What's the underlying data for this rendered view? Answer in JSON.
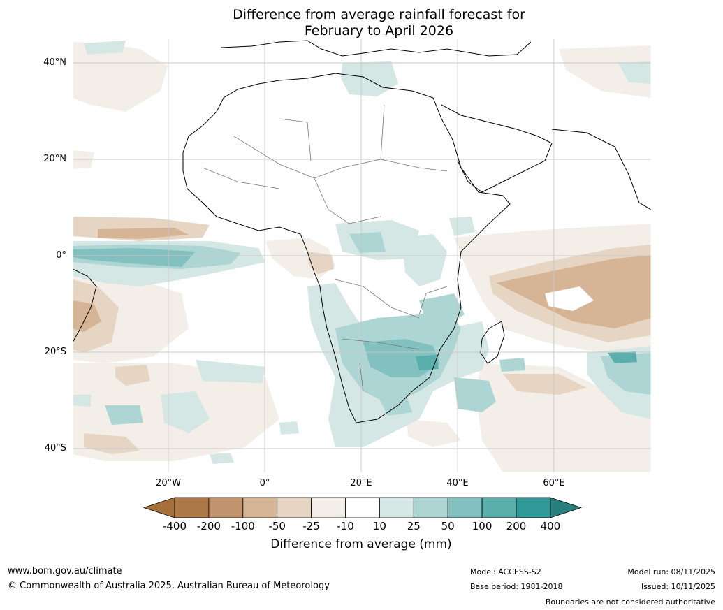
{
  "title": {
    "line1": "Difference from average rainfall forecast for",
    "line2": "February to April 2026"
  },
  "axes": {
    "lat_labels": [
      "40°N",
      "20°N",
      "0°",
      "20°S",
      "40°S"
    ],
    "lon_labels": [
      "20°W",
      "0°",
      "20°E",
      "40°E",
      "60°E"
    ]
  },
  "colorbar": {
    "title": "Difference from average (mm)",
    "boundaries": [
      "-400",
      "-200",
      "-100",
      "-50",
      "-25",
      "-10",
      "10",
      "25",
      "50",
      "100",
      "200",
      "400"
    ],
    "colors": [
      "#a6703a",
      "#ad7847",
      "#c2956e",
      "#d6b596",
      "#e6d5c3",
      "#f3eee8",
      "#ffffff",
      "#d4e7e5",
      "#acd5d3",
      "#83c1c0",
      "#5aaeac",
      "#2e9997",
      "#27807e"
    ]
  },
  "footer": {
    "url": "www.bom.gov.au/climate",
    "copyright": "© Commonwealth of Australia 2025, Australian Bureau of Meteorology",
    "model": "Model: ACCESS-S2",
    "base_period": "Base period: 1981-2018",
    "model_run": "Model run: 08/11/2025",
    "issued": "Issued: 10/11/2025",
    "disclaimer": "Boundaries are not considered authoritative"
  }
}
